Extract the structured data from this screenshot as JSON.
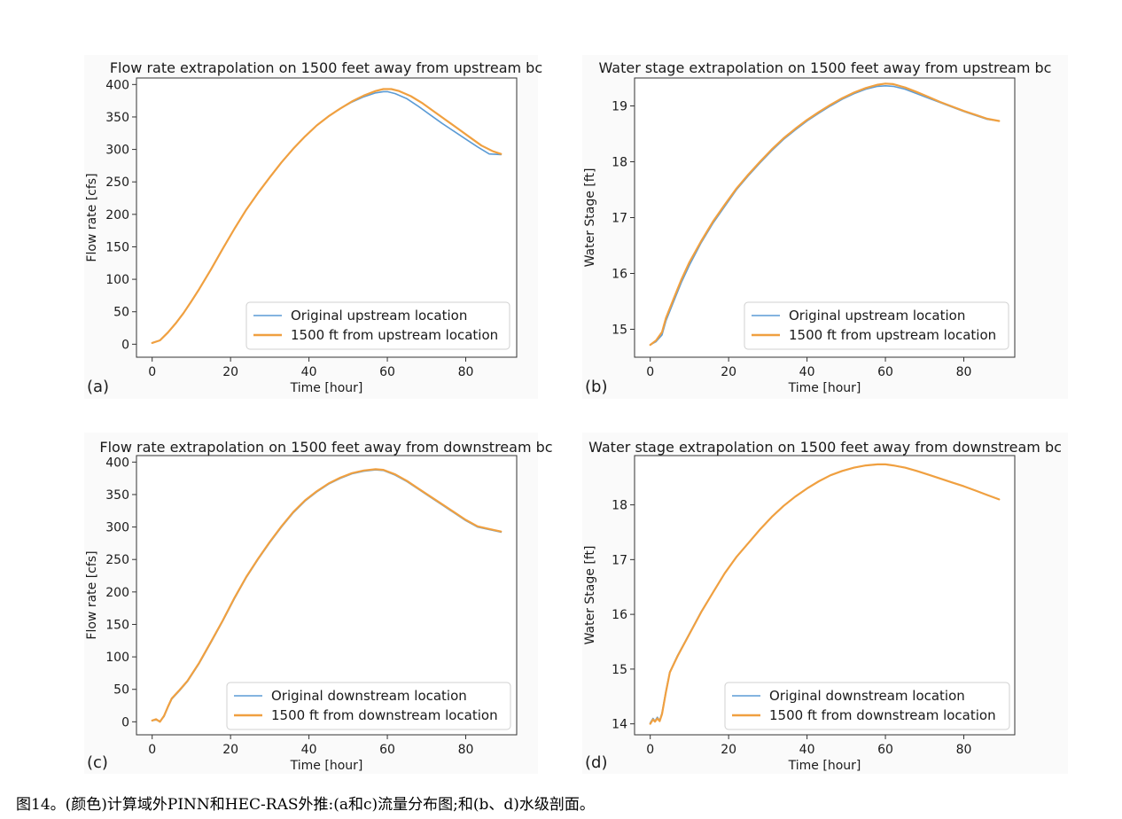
{
  "caption": "图14。(颜色)计算域外PINN和HEC-RAS外推:(a和c)流量分布图;和(b、d)水级剖面。",
  "colors": {
    "blue": "#5b9bd5",
    "orange": "#f0a040",
    "panel_bg": "#fafafa",
    "axis": "#333333"
  },
  "chart_data": [
    {
      "type": "line",
      "panel": "(a)",
      "title": "Flow rate extrapolation on 1500 feet away from upstream bc",
      "xlabel": "Time [hour]",
      "ylabel": "Flow rate [cfs]",
      "xlim": [
        -4,
        93
      ],
      "ylim": [
        -20,
        410
      ],
      "xticks": [
        0,
        20,
        40,
        60,
        80
      ],
      "yticks": [
        0,
        50,
        100,
        150,
        200,
        250,
        300,
        350,
        400
      ],
      "legend": "lower-right",
      "series": [
        {
          "name": "Original upstream location",
          "color": "#5b9bd5",
          "x": [
            0,
            2,
            4,
            6,
            8,
            10,
            12,
            15,
            18,
            21,
            24,
            27,
            30,
            33,
            36,
            39,
            42,
            45,
            48,
            51,
            54,
            57,
            59,
            60,
            62,
            65,
            68,
            71,
            74,
            77,
            80,
            83,
            86,
            89
          ],
          "y": [
            2,
            6,
            18,
            32,
            48,
            66,
            85,
            115,
            147,
            178,
            207,
            233,
            257,
            280,
            301,
            320,
            337,
            351,
            363,
            373,
            381,
            387,
            389,
            389,
            386,
            378,
            366,
            353,
            340,
            328,
            316,
            304,
            293,
            292
          ]
        },
        {
          "name": "1500 ft from upstream location",
          "color": "#f0a040",
          "x": [
            0,
            2,
            4,
            6,
            8,
            10,
            12,
            15,
            18,
            21,
            24,
            27,
            30,
            33,
            36,
            39,
            42,
            45,
            48,
            51,
            54,
            57,
            59,
            61,
            63,
            66,
            69,
            72,
            75,
            78,
            81,
            84,
            87,
            89
          ],
          "y": [
            2,
            6,
            18,
            32,
            48,
            66,
            85,
            115,
            147,
            178,
            207,
            233,
            257,
            280,
            301,
            320,
            337,
            351,
            363,
            374,
            383,
            390,
            393,
            393,
            390,
            382,
            371,
            358,
            345,
            332,
            319,
            306,
            297,
            293
          ]
        }
      ]
    },
    {
      "type": "line",
      "panel": "(b)",
      "title": "Water stage extrapolation on 1500 feet away from upstream bc",
      "xlabel": "Time [hour]",
      "ylabel": "Water Stage [ft]",
      "xlim": [
        -4,
        93
      ],
      "ylim": [
        14.5,
        19.5
      ],
      "xticks": [
        0,
        20,
        40,
        60,
        80
      ],
      "yticks": [
        15,
        16,
        17,
        18,
        19
      ],
      "legend": "lower-right",
      "series": [
        {
          "name": "Original upstream location",
          "color": "#5b9bd5",
          "x": [
            0,
            1.5,
            3,
            4,
            6,
            8,
            10,
            13,
            16,
            19,
            22,
            25,
            28,
            31,
            34,
            37,
            40,
            43,
            46,
            49,
            52,
            55,
            58,
            60,
            62,
            65,
            68,
            71,
            74,
            77,
            80,
            83,
            86,
            89
          ],
          "y": [
            14.72,
            14.78,
            14.9,
            15.15,
            15.5,
            15.85,
            16.15,
            16.55,
            16.9,
            17.2,
            17.5,
            17.75,
            17.98,
            18.2,
            18.4,
            18.57,
            18.73,
            18.87,
            19.0,
            19.12,
            19.22,
            19.3,
            19.35,
            19.36,
            19.35,
            19.3,
            19.22,
            19.14,
            19.06,
            18.98,
            18.9,
            18.83,
            18.76,
            18.73
          ]
        },
        {
          "name": "1500 ft from upstream location",
          "color": "#f0a040",
          "x": [
            0,
            1.5,
            3,
            4,
            6,
            8,
            10,
            13,
            16,
            19,
            22,
            25,
            28,
            31,
            34,
            37,
            40,
            43,
            46,
            49,
            52,
            55,
            58,
            60,
            62,
            65,
            68,
            71,
            74,
            77,
            80,
            83,
            86,
            89
          ],
          "y": [
            14.72,
            14.8,
            14.95,
            15.2,
            15.55,
            15.9,
            16.2,
            16.58,
            16.93,
            17.23,
            17.52,
            17.77,
            18.0,
            18.22,
            18.42,
            18.59,
            18.75,
            18.89,
            19.02,
            19.14,
            19.24,
            19.32,
            19.38,
            19.4,
            19.39,
            19.33,
            19.25,
            19.16,
            19.07,
            18.99,
            18.91,
            18.84,
            18.77,
            18.73
          ]
        }
      ]
    },
    {
      "type": "line",
      "panel": "(c)",
      "title": "Flow rate extrapolation on 1500 feet away from downstream bc",
      "xlabel": "Time [hour]",
      "ylabel": "Flow rate [cfs]",
      "xlim": [
        -4,
        93
      ],
      "ylim": [
        -20,
        410
      ],
      "xticks": [
        0,
        20,
        40,
        60,
        80
      ],
      "yticks": [
        0,
        50,
        100,
        150,
        200,
        250,
        300,
        350,
        400
      ],
      "legend": "lower-right",
      "series": [
        {
          "name": "Original downstream location",
          "color": "#5b9bd5",
          "x": [
            0,
            1,
            2,
            3,
            4,
            5,
            7,
            9,
            12,
            15,
            18,
            21,
            24,
            27,
            30,
            33,
            36,
            39,
            42,
            45,
            48,
            51,
            54,
            57,
            59,
            62,
            65,
            68,
            71,
            74,
            77,
            80,
            83,
            86,
            89
          ],
          "y": [
            2,
            3,
            1,
            8,
            22,
            35,
            48,
            62,
            90,
            122,
            155,
            190,
            222,
            250,
            276,
            300,
            322,
            340,
            354,
            366,
            375,
            382,
            386,
            388,
            387,
            380,
            370,
            358,
            346,
            334,
            322,
            310,
            300,
            296,
            292
          ]
        },
        {
          "name": "1500 ft from downstream location",
          "color": "#f0a040",
          "x": [
            0,
            1,
            2,
            3,
            4,
            5,
            7,
            9,
            12,
            15,
            18,
            21,
            24,
            27,
            30,
            33,
            36,
            39,
            42,
            45,
            48,
            51,
            54,
            57,
            59,
            62,
            65,
            68,
            71,
            74,
            77,
            80,
            83,
            86,
            89
          ],
          "y": [
            2,
            4,
            0,
            9,
            23,
            36,
            49,
            63,
            91,
            123,
            156,
            191,
            223,
            251,
            277,
            301,
            323,
            341,
            355,
            367,
            376,
            383,
            387,
            389,
            388,
            381,
            371,
            359,
            347,
            335,
            323,
            311,
            301,
            297,
            293
          ]
        }
      ]
    },
    {
      "type": "line",
      "panel": "(d)",
      "title": "Water stage extrapolation on 1500 feet away from downstream bc",
      "xlabel": "Time [hour]",
      "ylabel": "Water Stage [ft]",
      "xlim": [
        -4,
        93
      ],
      "ylim": [
        13.8,
        18.9
      ],
      "xticks": [
        0,
        20,
        40,
        60,
        80
      ],
      "yticks": [
        14,
        15,
        16,
        17,
        18
      ],
      "legend": "lower-right",
      "series": [
        {
          "name": "Original downstream location",
          "color": "#5b9bd5",
          "x": [
            0,
            0.7,
            1.2,
            1.8,
            2.4,
            3,
            4,
            5,
            7,
            10,
            13,
            16,
            19,
            22,
            25,
            28,
            31,
            34,
            37,
            40,
            43,
            46,
            49,
            52,
            55,
            58,
            60,
            62,
            65,
            68,
            71,
            74,
            77,
            80,
            83,
            86,
            89
          ],
          "y": [
            14.02,
            14.1,
            14.05,
            14.12,
            14.06,
            14.2,
            14.6,
            14.95,
            15.25,
            15.65,
            16.05,
            16.4,
            16.75,
            17.05,
            17.3,
            17.55,
            17.78,
            17.98,
            18.15,
            18.3,
            18.43,
            18.54,
            18.62,
            18.68,
            18.72,
            18.74,
            18.74,
            18.72,
            18.68,
            18.62,
            18.55,
            18.48,
            18.41,
            18.34,
            18.26,
            18.18,
            18.1
          ]
        },
        {
          "name": "1500 ft from downstream location",
          "color": "#f0a040",
          "x": [
            0,
            0.7,
            1.2,
            1.8,
            2.4,
            3,
            4,
            5,
            7,
            10,
            13,
            16,
            19,
            22,
            25,
            28,
            31,
            34,
            37,
            40,
            43,
            46,
            49,
            52,
            55,
            58,
            60,
            62,
            65,
            68,
            71,
            74,
            77,
            80,
            83,
            86,
            89
          ],
          "y": [
            14.0,
            14.08,
            14.04,
            14.1,
            14.05,
            14.18,
            14.58,
            14.94,
            15.24,
            15.64,
            16.04,
            16.4,
            16.75,
            17.05,
            17.3,
            17.55,
            17.78,
            17.98,
            18.15,
            18.3,
            18.43,
            18.54,
            18.62,
            18.68,
            18.72,
            18.74,
            18.74,
            18.72,
            18.68,
            18.62,
            18.55,
            18.48,
            18.41,
            18.34,
            18.26,
            18.18,
            18.1
          ]
        }
      ]
    }
  ]
}
